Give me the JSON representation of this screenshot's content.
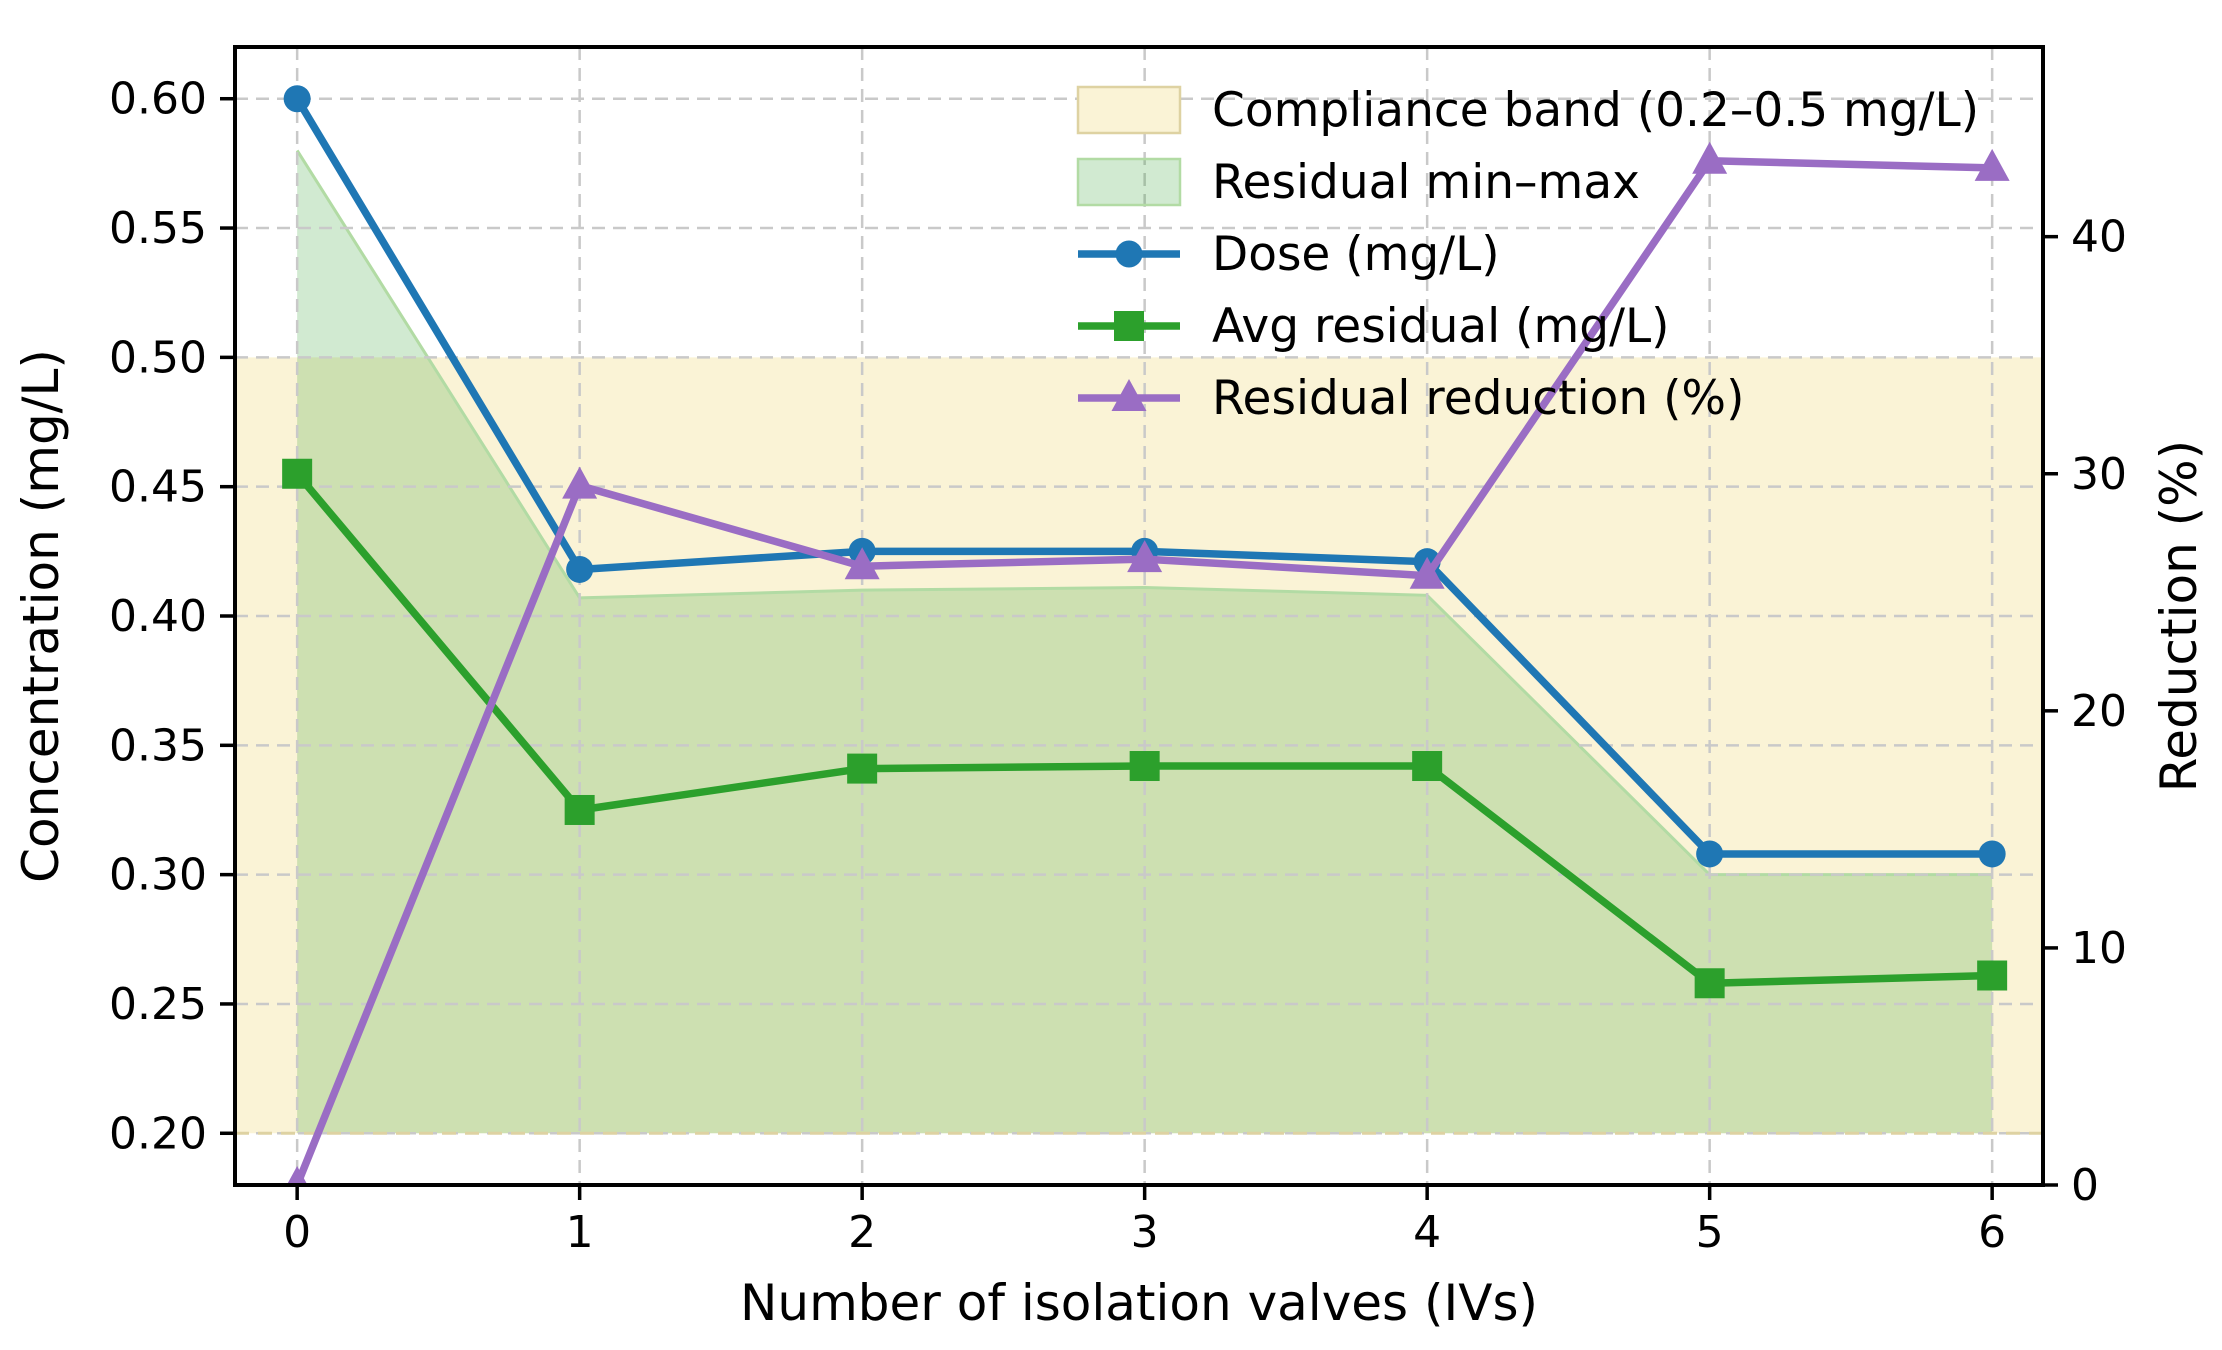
{
  "chart_data": {
    "type": "line",
    "x": [
      0,
      1,
      2,
      3,
      4,
      5,
      6
    ],
    "xlabel": "Number of isolation valves (IVs)",
    "ylabel_left": "Concentration (mg/L)",
    "ylabel_right": "Reduction (%)",
    "xtick_labels": [
      "0",
      "1",
      "2",
      "3",
      "4",
      "5",
      "6"
    ],
    "ytick_labels_left": [
      "0.20",
      "0.25",
      "0.30",
      "0.35",
      "0.40",
      "0.45",
      "0.50",
      "0.55",
      "0.60"
    ],
    "ytick_labels_right": [
      "0",
      "10",
      "20",
      "30",
      "40"
    ],
    "xlim": [
      -0.22,
      6.18
    ],
    "ylim_left": [
      0.18,
      0.62
    ],
    "ylim_right": [
      0,
      48
    ],
    "grid": true,
    "legend_position": "upper right",
    "legend_frame": false,
    "bands": {
      "compliance": {
        "label": "Compliance band (0.2–0.5 mg/L)",
        "ymin": 0.2,
        "ymax": 0.5,
        "fill": "#faf3d6",
        "edge": "#ded2a2"
      },
      "residual_minmax": {
        "label": "Residual min–max",
        "min": [
          0.2,
          0.2,
          0.2,
          0.2,
          0.2,
          0.2,
          0.2
        ],
        "max": [
          0.58,
          0.407,
          0.41,
          0.411,
          0.408,
          0.3,
          0.3
        ],
        "fill": "rgba(44,160,44,0.22)",
        "edge": "#b2dba4"
      }
    },
    "series": [
      {
        "id": "dose",
        "name": "Dose (mg/L)",
        "axis": "left",
        "marker": "circle",
        "color": "#1f77b4",
        "values": [
          0.6,
          0.418,
          0.425,
          0.425,
          0.421,
          0.308,
          0.308
        ]
      },
      {
        "id": "avg-residual",
        "name": "Avg residual (mg/L)",
        "axis": "left",
        "marker": "square",
        "color": "#2ca02c",
        "values": [
          0.455,
          0.325,
          0.341,
          0.342,
          0.342,
          0.258,
          0.261
        ]
      },
      {
        "id": "residual-reduction",
        "name": "Residual reduction (%)",
        "axis": "right",
        "marker": "triangle",
        "color": "#9a6dc4",
        "values": [
          0,
          29.5,
          26.1,
          26.4,
          25.7,
          43.2,
          42.9
        ]
      }
    ],
    "colors": {
      "grid": "#c9c9c9",
      "axis": "#000000",
      "background": "#ffffff"
    }
  }
}
